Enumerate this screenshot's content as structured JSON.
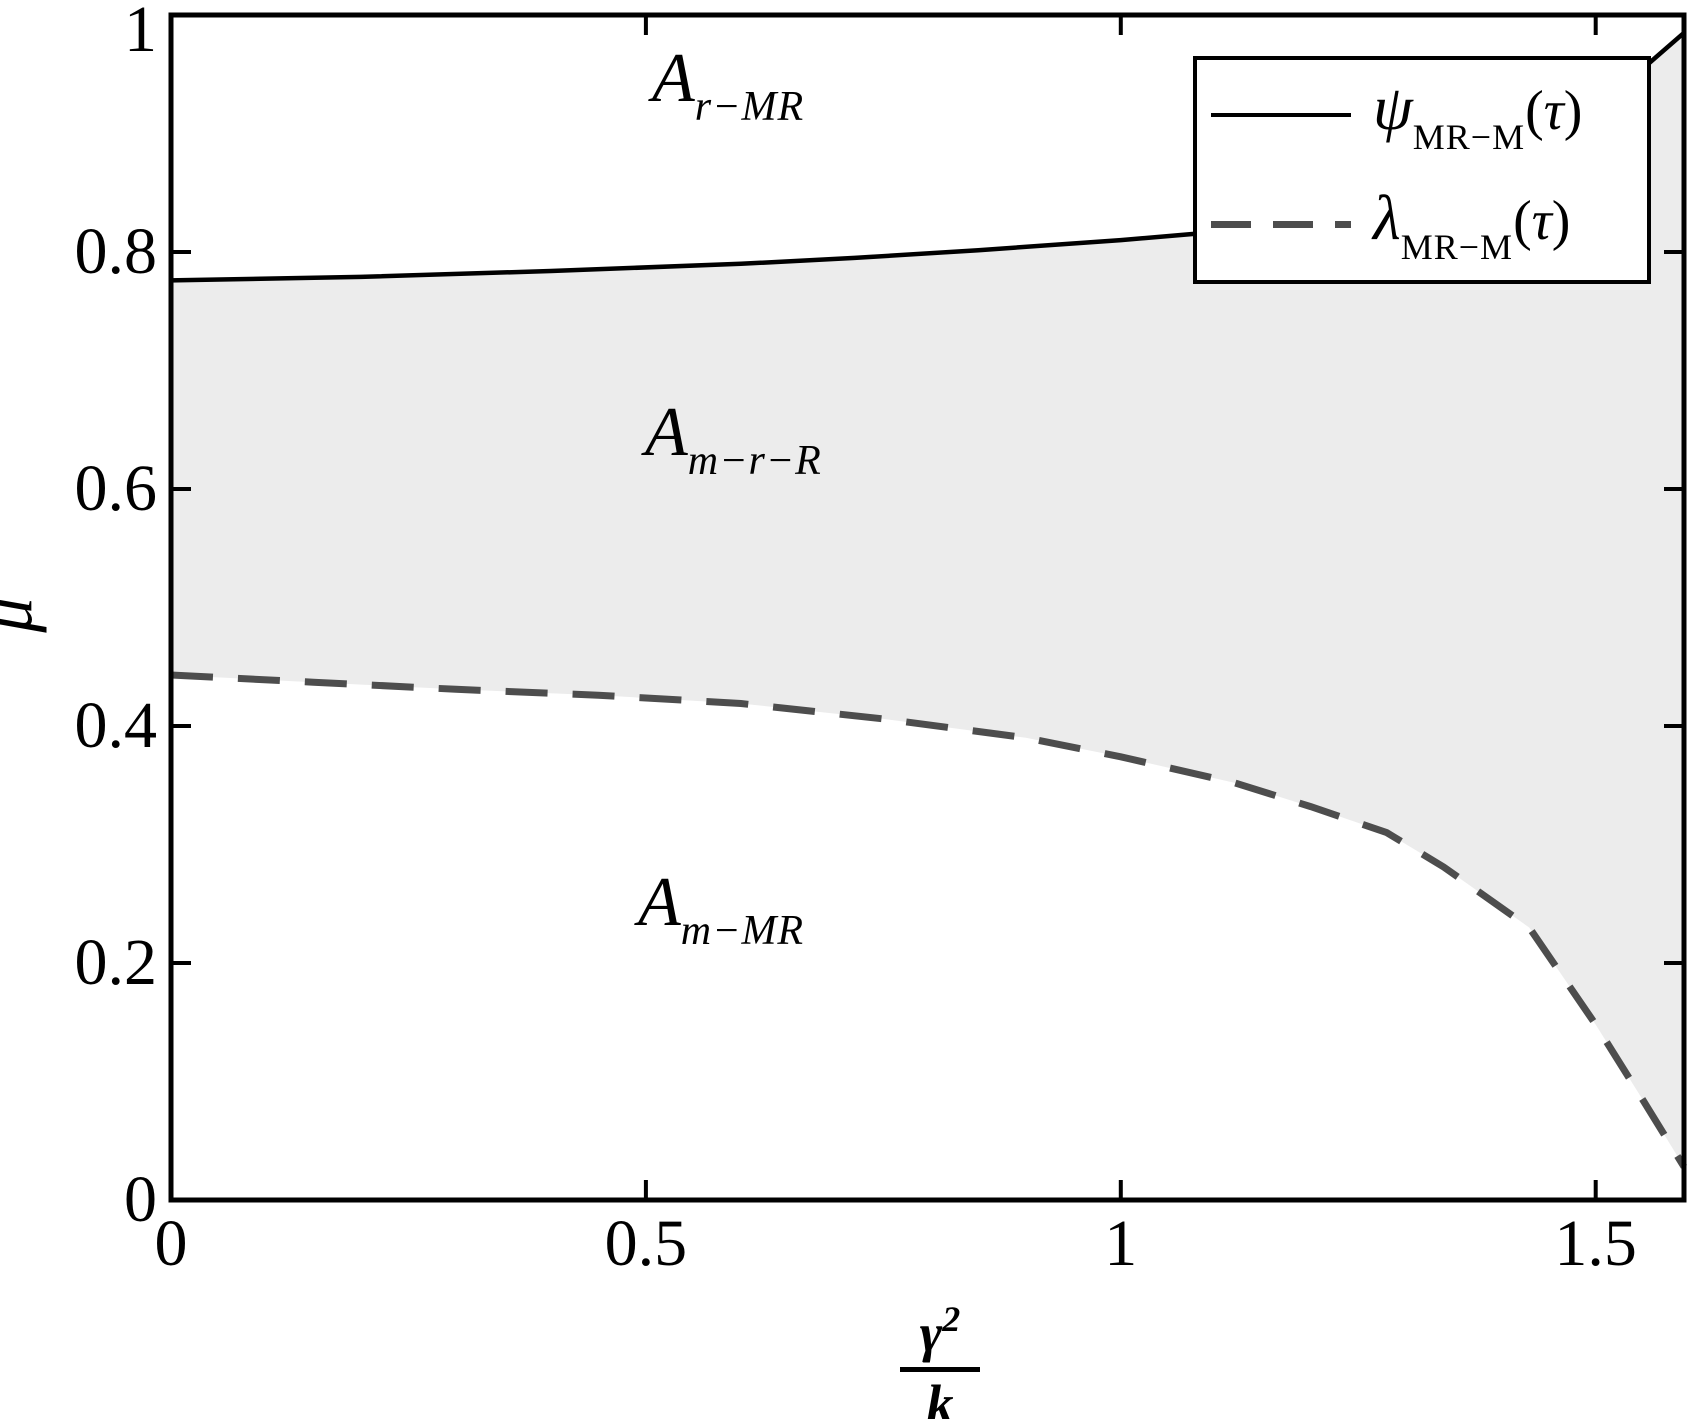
{
  "figure": {
    "background": "#ffffff",
    "region_labels": [
      {
        "letter": "A",
        "subscript": "r−MR"
      },
      {
        "letter": "A",
        "subscript": "m−r−R"
      },
      {
        "letter": "A",
        "subscript": "m−MR"
      }
    ],
    "legend": {
      "entries": [
        {
          "symbol": "ψ",
          "subscript": "MR−M",
          "arg_open": "(",
          "arg_symbol": "τ",
          "arg_close": ")",
          "line_style": "solid",
          "color": "#000000"
        },
        {
          "symbol": "λ",
          "subscript": "MR−M",
          "arg_open": "(",
          "arg_symbol": "τ",
          "arg_close": ")",
          "line_style": "dashed",
          "color": "#4d4d4d"
        }
      ]
    },
    "axes": {
      "ylabel": "μ",
      "xlabel": {
        "numerator": "γ",
        "exponent": "2",
        "denominator": "k"
      }
    }
  },
  "chart_data": {
    "type": "line",
    "title": "",
    "xlabel": "γ²/k",
    "ylabel": "μ",
    "xlim": [
      0,
      1.593
    ],
    "ylim": [
      0,
      1
    ],
    "grid": false,
    "legend_position": "top-right",
    "x_ticks": [
      0,
      0.5,
      1,
      1.5
    ],
    "x_tick_labels": [
      "0",
      "0.5",
      "1",
      "1.5"
    ],
    "y_ticks": [
      0,
      0.2,
      0.4,
      0.6,
      0.8,
      1
    ],
    "y_tick_labels": [
      "0",
      "0.2",
      "0.4",
      "0.6",
      "0.8",
      "1"
    ],
    "series": [
      {
        "name": "ψ_MR−M(τ)",
        "style": "solid",
        "color": "#000000",
        "points": [
          [
            0,
            0.776
          ],
          [
            0.2,
            0.779
          ],
          [
            0.4,
            0.784
          ],
          [
            0.6,
            0.79
          ],
          [
            0.72,
            0.795
          ],
          [
            0.85,
            0.8015
          ],
          [
            1.0,
            0.81
          ],
          [
            1.08,
            0.8155
          ],
          [
            1.2,
            0.8335
          ],
          [
            1.3,
            0.856
          ],
          [
            1.4,
            0.886
          ],
          [
            1.48,
            0.917
          ],
          [
            1.54,
            0.948
          ],
          [
            1.593,
            0.985
          ]
        ]
      },
      {
        "name": "λ_MR−M(τ)",
        "style": "dashed",
        "color": "#4d4d4d",
        "points": [
          [
            0,
            0.443
          ],
          [
            0.15,
            0.437
          ],
          [
            0.3,
            0.431
          ],
          [
            0.45,
            0.426
          ],
          [
            0.6,
            0.419
          ],
          [
            0.75,
            0.406
          ],
          [
            0.9,
            0.39
          ],
          [
            1.0,
            0.374
          ],
          [
            1.12,
            0.352
          ],
          [
            1.2,
            0.332
          ],
          [
            1.28,
            0.31
          ],
          [
            1.34,
            0.281
          ],
          [
            1.43,
            0.23
          ],
          [
            1.5,
            0.148
          ],
          [
            1.55,
            0.084
          ],
          [
            1.593,
            0.028
          ]
        ]
      }
    ],
    "fill_between": {
      "between": [
        "ψ_MR−M(τ)",
        "λ_MR−M(τ)"
      ],
      "color": "#ececec"
    },
    "annotations": [
      {
        "text": "A_r−MR",
        "region": "above ψ curve",
        "x": 0.55,
        "y": 0.93
      },
      {
        "text": "A_m−r−R",
        "region": "between curves (shaded)",
        "x": 0.55,
        "y": 0.62
      },
      {
        "text": "A_m−MR",
        "region": "below λ curve",
        "x": 0.55,
        "y": 0.23
      }
    ]
  }
}
